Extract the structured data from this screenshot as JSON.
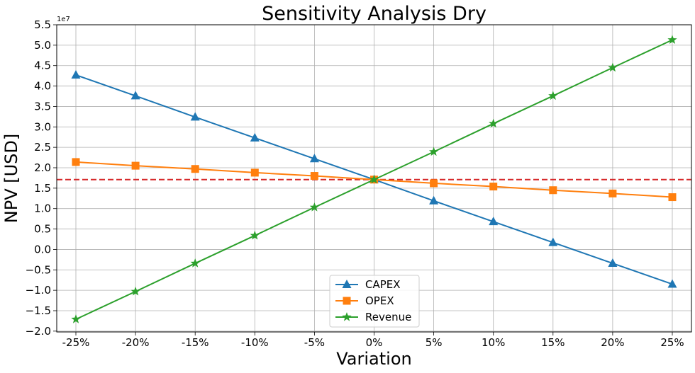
{
  "chart_data": {
    "type": "line",
    "title": "Sensitivity Analysis Dry",
    "xlabel": "Variation",
    "ylabel": "NPV [USD]",
    "y_offset_label": "1e7",
    "categories": [
      "-25%",
      "-20%",
      "-15%",
      "-10%",
      "-5%",
      "0%",
      "5%",
      "10%",
      "15%",
      "20%",
      "25%"
    ],
    "y_ticks": [
      -2.0,
      -1.5,
      -1.0,
      -0.5,
      0.0,
      0.5,
      1.0,
      1.5,
      2.0,
      2.5,
      3.0,
      3.5,
      4.0,
      4.5,
      5.0,
      5.5
    ],
    "y_tick_labels": [
      "−2.0",
      "−1.5",
      "−1.0",
      "−0.5",
      "0.0",
      "0.5",
      "1.0",
      "1.5",
      "2.0",
      "2.5",
      "3.0",
      "3.5",
      "4.0",
      "4.5",
      "5.0",
      "5.5"
    ],
    "ylim": [
      -2.02,
      5.5
    ],
    "grid": true,
    "legend_position": "bottom-center",
    "baseline": {
      "value": 1.71,
      "color": "#d62728",
      "style": "dashed"
    },
    "series": [
      {
        "name": "CAPEX",
        "color": "#1f77b4",
        "marker": "triangle",
        "values": [
          4.27,
          3.76,
          3.24,
          2.73,
          2.22,
          1.71,
          1.19,
          0.68,
          0.17,
          -0.34,
          -0.85
        ]
      },
      {
        "name": "OPEX",
        "color": "#ff7f0e",
        "marker": "square",
        "values": [
          2.14,
          2.05,
          1.97,
          1.88,
          1.8,
          1.71,
          1.62,
          1.54,
          1.45,
          1.37,
          1.28
        ]
      },
      {
        "name": "Revenue",
        "color": "#2ca02c",
        "marker": "star",
        "values": [
          -1.71,
          -1.03,
          -0.34,
          0.34,
          1.03,
          1.71,
          2.39,
          3.08,
          3.76,
          4.45,
          5.13
        ]
      }
    ]
  }
}
